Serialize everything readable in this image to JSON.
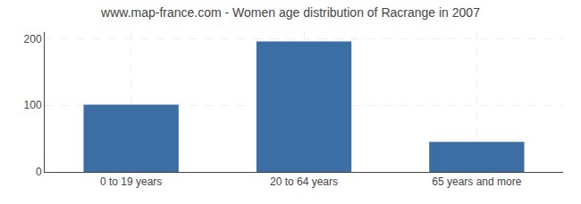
{
  "chart_data": {
    "type": "bar",
    "title": "www.map-france.com - Women age distribution of Racrange in 2007",
    "categories": [
      "0 to 19 years",
      "20 to 64 years",
      "65 years and more"
    ],
    "values": [
      101,
      196,
      45
    ],
    "color": "#3a6ea5",
    "ylim": [
      0,
      210
    ],
    "yticks": [
      0,
      100,
      200
    ],
    "grid": true
  }
}
